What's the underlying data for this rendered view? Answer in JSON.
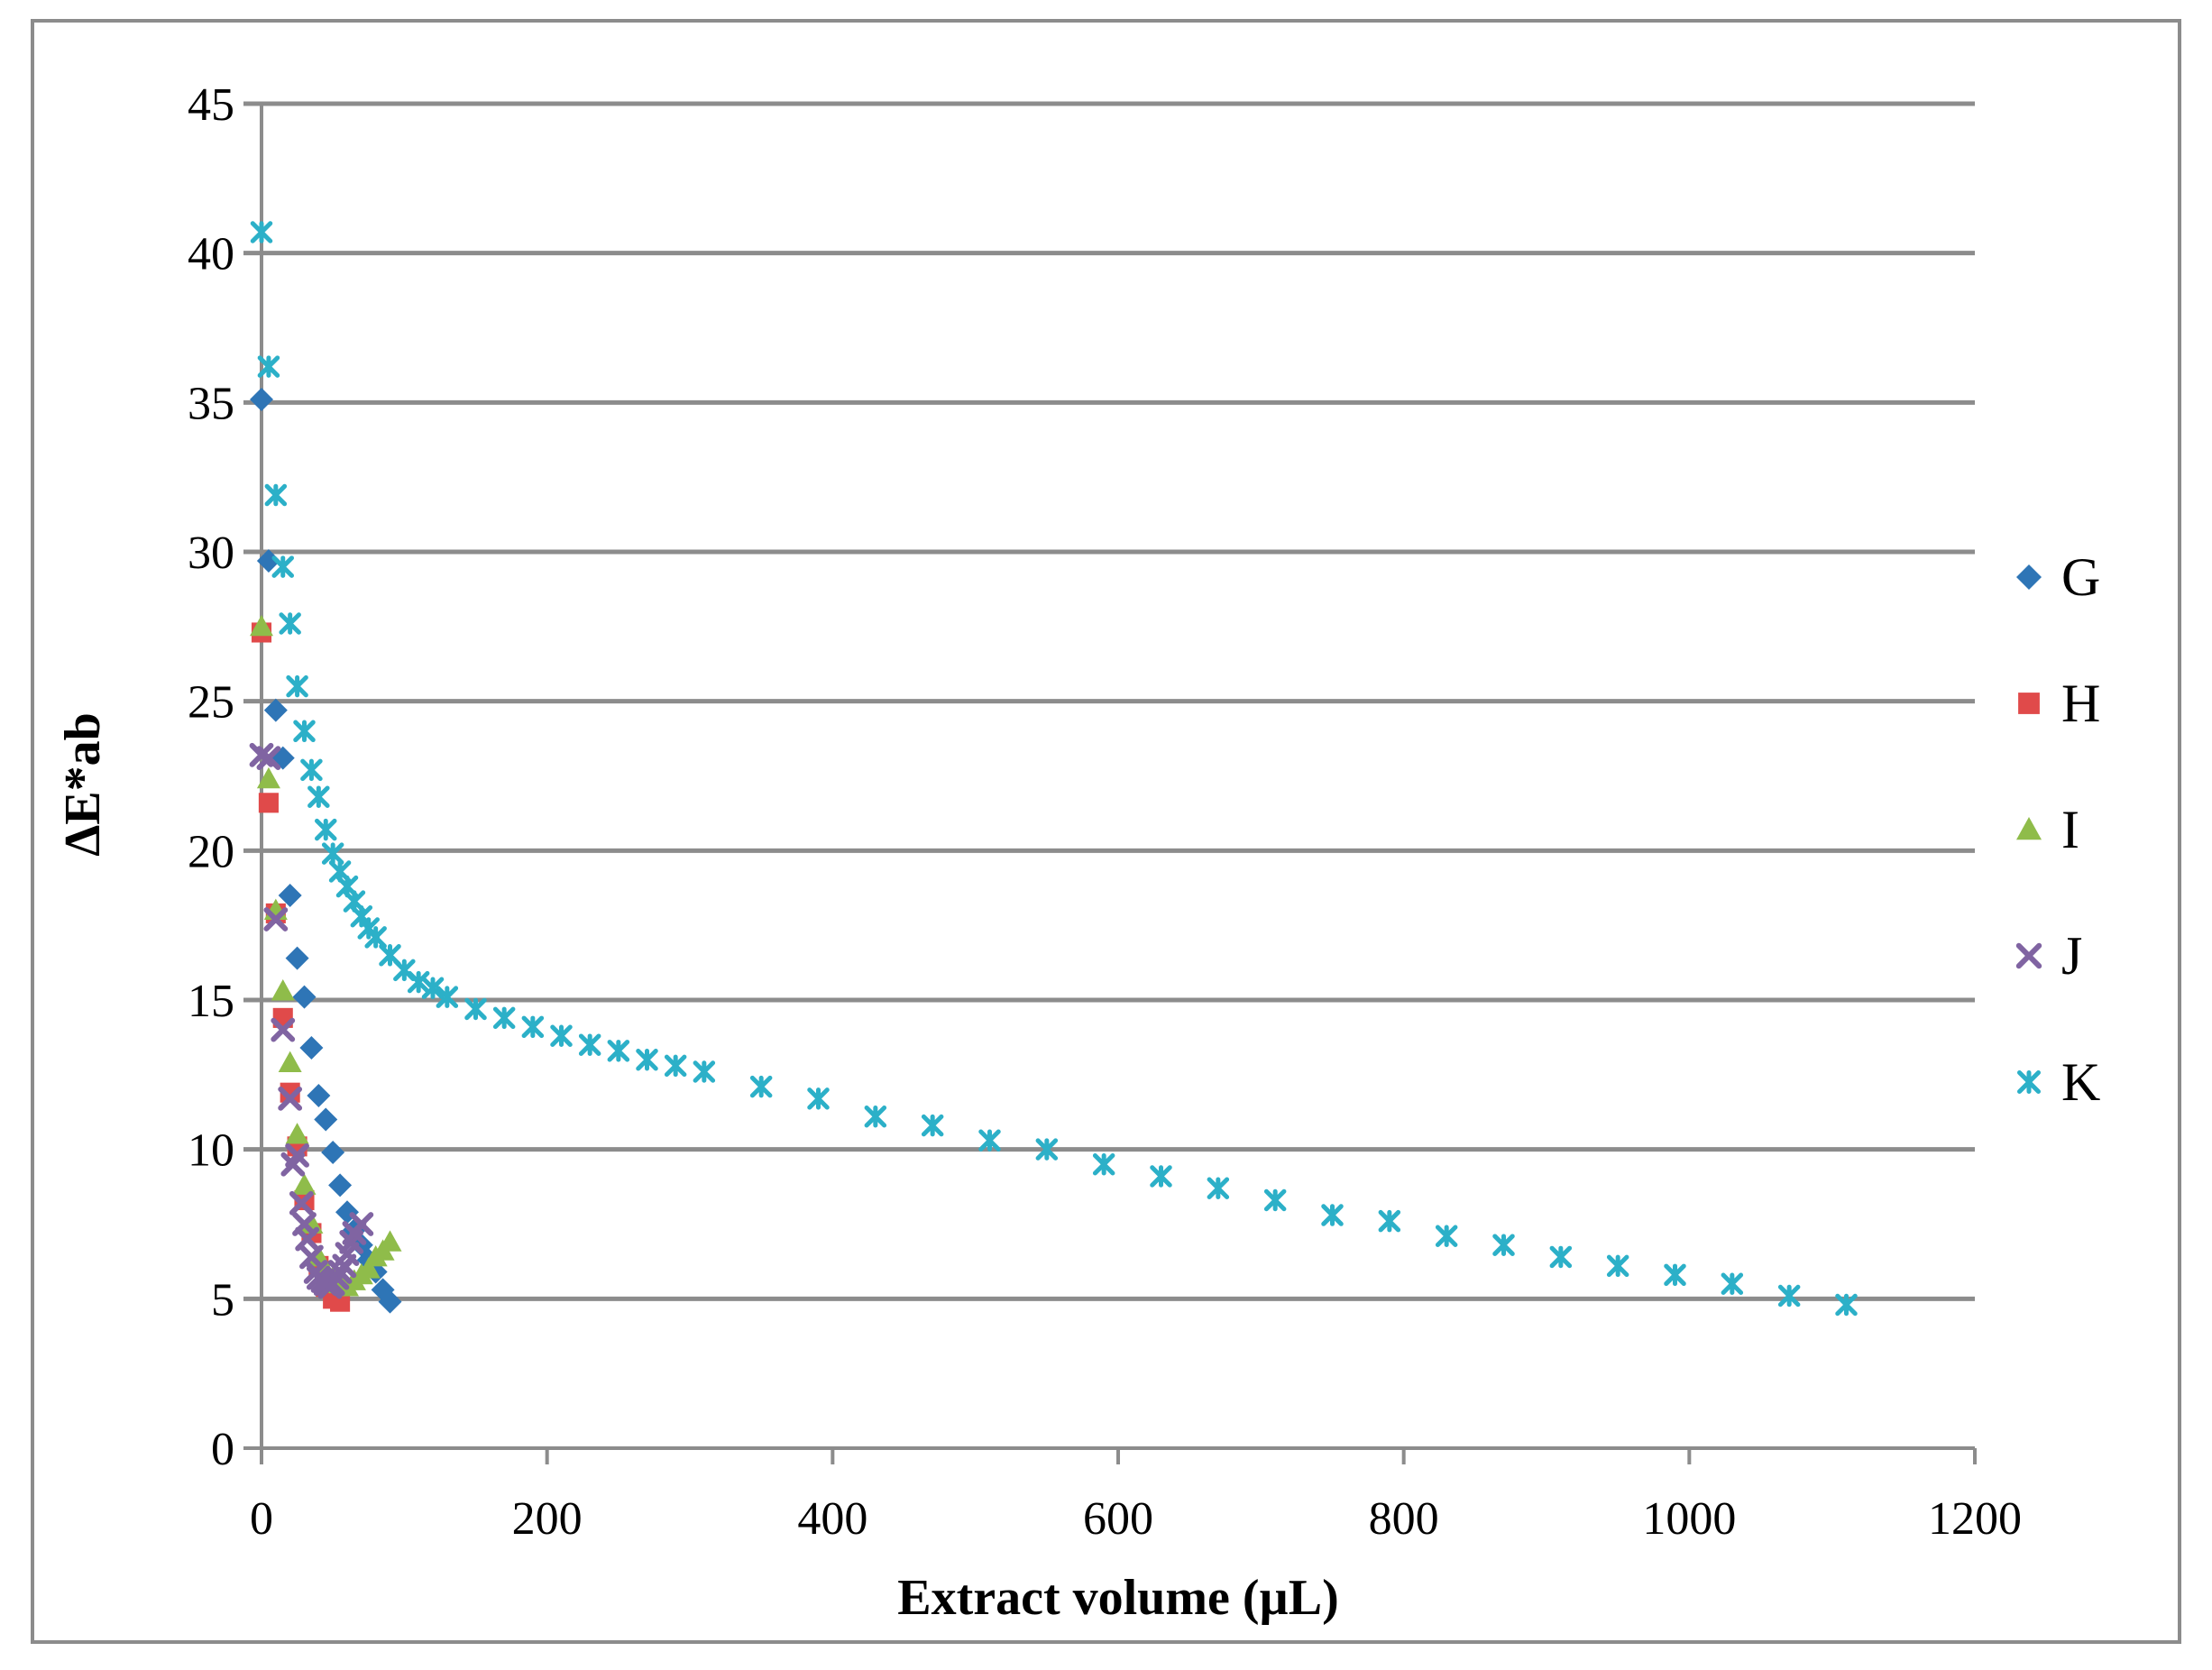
{
  "chart_data": {
    "type": "scatter",
    "title": "",
    "xlabel": "Extract volume (µL)",
    "ylabel": "ΔE*ab",
    "xlim": [
      0,
      1200
    ],
    "ylim": [
      0,
      45
    ],
    "xticks": [
      "0",
      "200",
      "400",
      "600",
      "800",
      "1000",
      "1200"
    ],
    "yticks": [
      "0",
      "5",
      "10",
      "15",
      "20",
      "25",
      "30",
      "35",
      "40",
      "45"
    ],
    "grid": "horizontal",
    "legend_position": "right",
    "series": [
      {
        "name": "G",
        "marker": "diamond",
        "color": "#2e75b6",
        "points": [
          [
            0,
            35.1
          ],
          [
            5,
            29.7
          ],
          [
            10,
            24.7
          ],
          [
            15,
            23.1
          ],
          [
            20,
            18.5
          ],
          [
            25,
            16.4
          ],
          [
            30,
            15.1
          ],
          [
            35,
            13.4
          ],
          [
            40,
            11.8
          ],
          [
            45,
            11.0
          ],
          [
            50,
            9.9
          ],
          [
            55,
            8.8
          ],
          [
            60,
            7.9
          ],
          [
            65,
            7.3
          ],
          [
            70,
            6.8
          ],
          [
            75,
            6.3
          ],
          [
            80,
            5.9
          ],
          [
            85,
            5.3
          ],
          [
            90,
            4.9
          ]
        ]
      },
      {
        "name": "H",
        "marker": "square",
        "color": "#e04a4a",
        "points": [
          [
            0,
            27.3
          ],
          [
            5,
            21.6
          ],
          [
            10,
            17.9
          ],
          [
            15,
            14.4
          ],
          [
            20,
            11.9
          ],
          [
            25,
            10.1
          ],
          [
            30,
            8.3
          ],
          [
            35,
            7.2
          ],
          [
            40,
            6.1
          ],
          [
            45,
            5.4
          ],
          [
            50,
            5.0
          ],
          [
            55,
            4.9
          ]
        ]
      },
      {
        "name": "I",
        "marker": "triangle",
        "color": "#8fbc4a",
        "points": [
          [
            0,
            27.5
          ],
          [
            5,
            22.4
          ],
          [
            10,
            18.0
          ],
          [
            15,
            15.3
          ],
          [
            20,
            12.9
          ],
          [
            25,
            10.5
          ],
          [
            30,
            8.8
          ],
          [
            35,
            7.5
          ],
          [
            40,
            6.4
          ],
          [
            45,
            5.9
          ],
          [
            50,
            5.7
          ],
          [
            55,
            5.5
          ],
          [
            60,
            5.4
          ],
          [
            65,
            5.6
          ],
          [
            70,
            5.8
          ],
          [
            75,
            6.0
          ],
          [
            80,
            6.4
          ],
          [
            85,
            6.6
          ],
          [
            90,
            6.9
          ]
        ]
      },
      {
        "name": "J",
        "marker": "x",
        "color": "#8064a2",
        "points": [
          [
            0,
            23.2
          ],
          [
            5,
            23.1
          ],
          [
            10,
            17.7
          ],
          [
            15,
            14.0
          ],
          [
            20,
            11.7
          ],
          [
            22,
            9.5
          ],
          [
            25,
            9.8
          ],
          [
            28,
            8.2
          ],
          [
            30,
            7.5
          ],
          [
            32,
            7.0
          ],
          [
            35,
            6.4
          ],
          [
            38,
            5.9
          ],
          [
            40,
            5.7
          ],
          [
            43,
            5.6
          ],
          [
            45,
            5.5
          ],
          [
            48,
            5.4
          ],
          [
            50,
            5.5
          ],
          [
            53,
            5.7
          ],
          [
            55,
            5.9
          ],
          [
            58,
            6.1
          ],
          [
            60,
            6.5
          ],
          [
            63,
            6.9
          ],
          [
            65,
            7.2
          ],
          [
            70,
            7.5
          ]
        ]
      },
      {
        "name": "K",
        "marker": "star",
        "color": "#2cb0c8",
        "points": [
          [
            0,
            40.7
          ],
          [
            5,
            36.2
          ],
          [
            10,
            31.9
          ],
          [
            15,
            29.5
          ],
          [
            20,
            27.6
          ],
          [
            25,
            25.5
          ],
          [
            30,
            24.0
          ],
          [
            35,
            22.7
          ],
          [
            40,
            21.8
          ],
          [
            45,
            20.7
          ],
          [
            50,
            19.9
          ],
          [
            55,
            19.3
          ],
          [
            60,
            18.8
          ],
          [
            65,
            18.3
          ],
          [
            70,
            17.8
          ],
          [
            75,
            17.4
          ],
          [
            80,
            17.1
          ],
          [
            90,
            16.5
          ],
          [
            100,
            16.0
          ],
          [
            110,
            15.6
          ],
          [
            120,
            15.4
          ],
          [
            130,
            15.1
          ],
          [
            150,
            14.7
          ],
          [
            170,
            14.4
          ],
          [
            190,
            14.1
          ],
          [
            210,
            13.8
          ],
          [
            230,
            13.5
          ],
          [
            250,
            13.3
          ],
          [
            270,
            13.0
          ],
          [
            290,
            12.8
          ],
          [
            310,
            12.6
          ],
          [
            350,
            12.1
          ],
          [
            390,
            11.7
          ],
          [
            430,
            11.1
          ],
          [
            470,
            10.8
          ],
          [
            510,
            10.3
          ],
          [
            550,
            10.0
          ],
          [
            590,
            9.5
          ],
          [
            630,
            9.1
          ],
          [
            670,
            8.7
          ],
          [
            710,
            8.3
          ],
          [
            750,
            7.8
          ],
          [
            790,
            7.6
          ],
          [
            830,
            7.1
          ],
          [
            870,
            6.8
          ],
          [
            910,
            6.4
          ],
          [
            950,
            6.1
          ],
          [
            990,
            5.8
          ],
          [
            1030,
            5.5
          ],
          [
            1070,
            5.1
          ],
          [
            1110,
            4.8
          ]
        ]
      }
    ]
  }
}
